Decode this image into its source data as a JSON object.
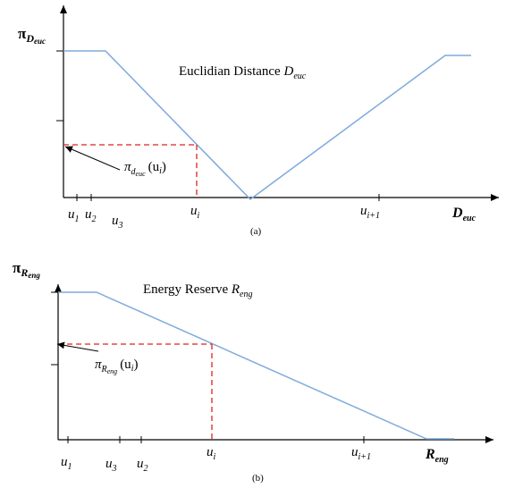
{
  "colors": {
    "axis": "#000000",
    "curve": "#7eaadc",
    "dashed": "#e02020",
    "text": "#000000"
  },
  "panel_a": {
    "caption": "(a)",
    "title_prefix": "Euclidian Distance",
    "title_sym": "D",
    "title_sub": "euc",
    "ylabel_pi": "π",
    "ylabel_sym": "D",
    "ylabel_sub": "euc",
    "xlabel_sym": "D",
    "xlabel_sub": "euc",
    "annotation": {
      "pi": "π",
      "sub": "d",
      "subsub": "euc",
      "arg": "(u",
      "arg_sub": "i",
      "close": ")"
    },
    "ticks": [
      {
        "sym": "u",
        "sub": "1"
      },
      {
        "sym": "u",
        "sub": "2"
      },
      {
        "sym": "u",
        "sub": "3"
      },
      {
        "sym": "u",
        "sub": "i"
      },
      {
        "sym": "u",
        "sub": "i+1"
      }
    ]
  },
  "panel_b": {
    "caption": "(b)",
    "title_prefix": "Energy Reserve",
    "title_sym": "R",
    "title_sub": "eng",
    "ylabel_pi": "π",
    "ylabel_sym": "R",
    "ylabel_sub": "eng",
    "xlabel_sym": "R",
    "xlabel_sub": "eng",
    "annotation": {
      "pi": "π",
      "sub": "R",
      "subsub": "eng",
      "arg": "(u",
      "arg_sub": "i",
      "close": ")"
    },
    "ticks": [
      {
        "sym": "u",
        "sub": "1"
      },
      {
        "sym": "u",
        "sub": "3"
      },
      {
        "sym": "u",
        "sub": "2"
      },
      {
        "sym": "u",
        "sub": "i"
      },
      {
        "sym": "u",
        "sub": "i+1"
      }
    ]
  }
}
